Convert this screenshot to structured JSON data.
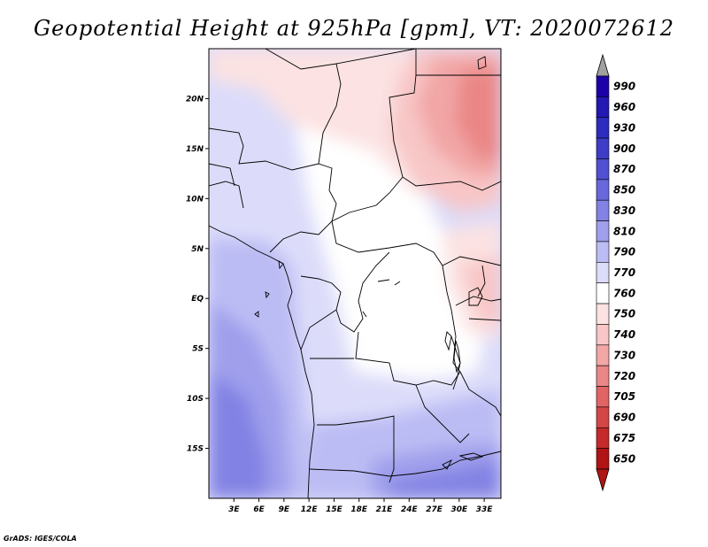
{
  "title": "Geopotential Height at 925hPa [gpm], VT: 2020072612",
  "credit": "GrADS: IGES/COLA",
  "map": {
    "lat_range": [
      -20,
      25
    ],
    "lon_range": [
      0,
      35
    ],
    "lat_ticks": [
      {
        "value": 20,
        "label": "20N"
      },
      {
        "value": 15,
        "label": "15N"
      },
      {
        "value": 10,
        "label": "10N"
      },
      {
        "value": 5,
        "label": "5N"
      },
      {
        "value": 0,
        "label": "EQ"
      },
      {
        "value": -5,
        "label": "5S"
      },
      {
        "value": -10,
        "label": "10S"
      },
      {
        "value": -15,
        "label": "15S"
      }
    ],
    "lon_ticks": [
      {
        "value": 3,
        "label": "3E"
      },
      {
        "value": 6,
        "label": "6E"
      },
      {
        "value": 9,
        "label": "9E"
      },
      {
        "value": 12,
        "label": "12E"
      },
      {
        "value": 15,
        "label": "15E"
      },
      {
        "value": 18,
        "label": "18E"
      },
      {
        "value": 21,
        "label": "21E"
      },
      {
        "value": 24,
        "label": "24E"
      },
      {
        "value": 27,
        "label": "27E"
      },
      {
        "value": 30,
        "label": "30E"
      },
      {
        "value": 33,
        "label": "33E"
      }
    ]
  },
  "colorbar": {
    "levels": [
      {
        "label": "990",
        "color": "#1c00a8"
      },
      {
        "label": "960",
        "color": "#2318b2"
      },
      {
        "label": "930",
        "color": "#2c2cbe"
      },
      {
        "label": "900",
        "color": "#3d3dc8"
      },
      {
        "label": "870",
        "color": "#5050d2"
      },
      {
        "label": "850",
        "color": "#6868dc"
      },
      {
        "label": "830",
        "color": "#8282e4"
      },
      {
        "label": "810",
        "color": "#9f9fec"
      },
      {
        "label": "790",
        "color": "#bcbcf4"
      },
      {
        "label": "770",
        "color": "#dcdcfa"
      },
      {
        "label": "760",
        "color": "#ffffff"
      },
      {
        "label": "750",
        "color": "#fce2e2"
      },
      {
        "label": "740",
        "color": "#f8c6c6"
      },
      {
        "label": "730",
        "color": "#f2a6a6"
      },
      {
        "label": "720",
        "color": "#ea8686"
      },
      {
        "label": "705",
        "color": "#e06464"
      },
      {
        "label": "690",
        "color": "#d44646"
      },
      {
        "label": "675",
        "color": "#c42a2a"
      },
      {
        "label": "650",
        "color": "#b01414"
      }
    ],
    "top_arrow_color": "#a0a0a0",
    "bottom_arrow_color": "#b01414"
  }
}
